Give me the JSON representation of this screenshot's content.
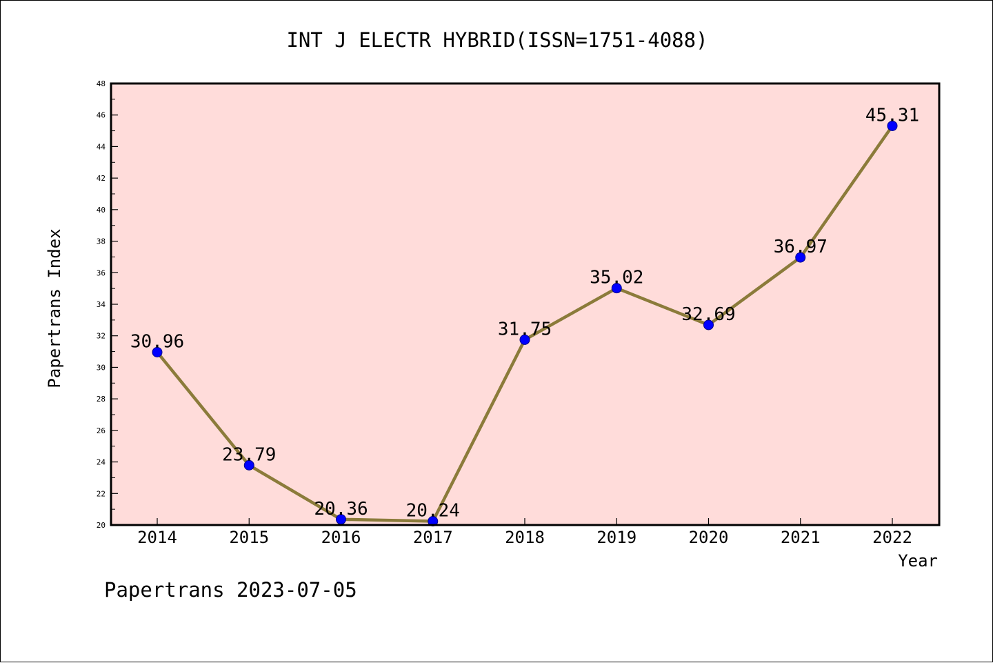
{
  "chart_data": {
    "type": "line",
    "title": "INT J ELECTR HYBRID(ISSN=1751-4088)",
    "xlabel": "Year",
    "ylabel": "Papertrans Index",
    "categories": [
      "2014",
      "2015",
      "2016",
      "2017",
      "2018",
      "2019",
      "2020",
      "2021",
      "2022"
    ],
    "series": [
      {
        "values": [
          30.96,
          23.79,
          20.36,
          20.24,
          31.75,
          35.02,
          32.69,
          36.97,
          45.31
        ],
        "labels": [
          "30.96",
          "23.79",
          "20.36",
          "20.24",
          "31.75",
          "35.02",
          "32.69",
          "36.97",
          "45.31"
        ]
      }
    ],
    "ylim": [
      20,
      48
    ],
    "yticks": [
      "20",
      "22",
      "24",
      "26",
      "28",
      "30",
      "32",
      "34",
      "36",
      "38",
      "40",
      "42",
      "44",
      "46",
      "48"
    ],
    "grid": false,
    "legend": "none",
    "colors": {
      "plot_background": "#FFDCDA",
      "line": "#8B7B3A",
      "marker": "#0000FF"
    }
  },
  "footer": {
    "credit": "Papertrans 2023-07-05"
  }
}
